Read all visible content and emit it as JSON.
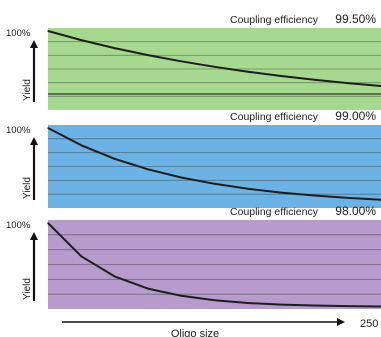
{
  "figure": {
    "x_axis_label": "Oligo size",
    "x_axis_end_label": "250"
  },
  "chart_data": [
    {
      "type": "line",
      "panel_label": "Coupling efficiency",
      "panel_value": "99.50%",
      "ylabel": "Yield",
      "y_top_label": "100%",
      "xlabel": "Oligo size",
      "xlim": [
        0,
        250
      ],
      "ylim": [
        0,
        100
      ],
      "grid": true,
      "background_color": "#a6d98f",
      "series": [
        {
          "x": [
            0,
            25,
            50,
            75,
            100,
            125,
            150,
            175,
            200,
            225,
            250
          ],
          "values": [
            100,
            88.2,
            77.8,
            68.7,
            60.6,
            53.5,
            47.2,
            41.6,
            36.7,
            32.4,
            28.6
          ]
        }
      ]
    },
    {
      "type": "line",
      "panel_label": "Coupling efficiency",
      "panel_value": "99.00%",
      "ylabel": "Yield",
      "y_top_label": "100%",
      "xlabel": "Oligo size",
      "xlim": [
        0,
        250
      ],
      "ylim": [
        0,
        100
      ],
      "grid": true,
      "background_color": "#6cb2e4",
      "series": [
        {
          "x": [
            0,
            25,
            50,
            75,
            100,
            125,
            150,
            175,
            200,
            225,
            250
          ],
          "values": [
            100,
            77.8,
            60.5,
            47.1,
            36.6,
            28.5,
            22.1,
            17.2,
            13.4,
            10.4,
            8.1
          ]
        }
      ]
    },
    {
      "type": "line",
      "panel_label": "Coupling efficiency",
      "panel_value": "98.00%",
      "ylabel": "Yield",
      "y_top_label": "100%",
      "xlabel": "Oligo size",
      "xlim": [
        0,
        250
      ],
      "ylim": [
        0,
        100
      ],
      "grid": true,
      "background_color": "#b59ccc",
      "series": [
        {
          "x": [
            0,
            25,
            50,
            75,
            100,
            125,
            150,
            175,
            200,
            225,
            250
          ],
          "values": [
            100,
            60.3,
            36.4,
            21.9,
            13.3,
            8.0,
            4.8,
            2.9,
            1.8,
            1.1,
            0.6
          ]
        }
      ]
    }
  ]
}
